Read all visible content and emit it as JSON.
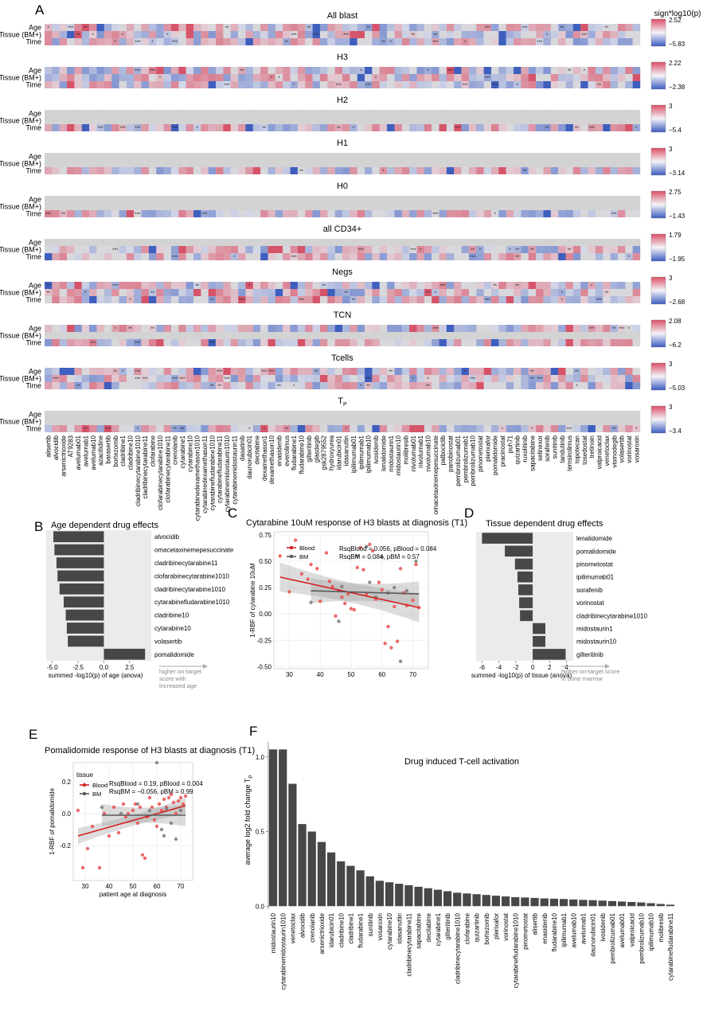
{
  "panel_letters": {
    "A": "A",
    "B": "B",
    "C": "C",
    "D": "D",
    "E": "E",
    "F": "F"
  },
  "heatmap_legend_title": "sign*log10(p)",
  "row_labels": [
    "Age",
    "Tissue (BM+)",
    "Time"
  ],
  "heatmap_panels": [
    {
      "title": "All blast",
      "max": "2.52",
      "min": "−5.83"
    },
    {
      "title": "H3",
      "max": "2.22",
      "min": "−2.38"
    },
    {
      "title": "H2",
      "max": "3",
      "min": "−5.4"
    },
    {
      "title": "H1",
      "max": "3",
      "min": "−3.14"
    },
    {
      "title": "H0",
      "max": "2.75",
      "min": "−1.43"
    },
    {
      "title": "all CD34+",
      "max": "1.79",
      "min": "−1.95"
    },
    {
      "title": "Negs",
      "max": "3",
      "min": "−2.68"
    },
    {
      "title": "TCN",
      "max": "2.08",
      "min": "−6.2"
    },
    {
      "title": "Tcells",
      "max": "3",
      "min": "−5.03"
    },
    {
      "title": "T",
      "title_sub": "P",
      "max": "3",
      "min": "−3.4"
    }
  ],
  "drugs": [
    "alisertib",
    "alvocidib",
    "arsenictrioxide",
    "AT9283",
    "avelumab01",
    "avelumab1",
    "avelumab10",
    "azacitidine",
    "barasertib",
    "bortezomib",
    "cladribine1",
    "cladribine10",
    "cladribinecytarabine1010",
    "cladribinecytarabine11",
    "clofarabine",
    "clofarabinecytarabine1010",
    "clofarabinecytarabine11",
    "crenolanib",
    "cytarabine1",
    "cytarabine10",
    "cytarabinedexamethason1010",
    "cytarabinedexamethason11",
    "cytarabinefludarabine1010",
    "cytarabinefludarabine11",
    "cytarabinemidostaurin1010",
    "cytarabinemidostaurin11",
    "dasatinib",
    "daunorubicin01",
    "decitabine",
    "dexamethason1",
    "dexamethason10",
    "enasidenib",
    "everolimus",
    "fludarabine1",
    "fludarabine10",
    "gilteritinib",
    "glasdegib",
    "gsk2879552",
    "hydroxyurea",
    "idarubicin01",
    "idasanutlin",
    "ipilimumab01",
    "ipilimumab1",
    "ipilimumab10",
    "ivosidenib",
    "lenalidomide",
    "midostaurin1",
    "midostaurin10",
    "molibresib",
    "nivolumab01",
    "nivolumab1",
    "nivolumab10",
    "omacetaxinemepesuccinate",
    "palbociclib",
    "panobinostat",
    "pembrolizumab01",
    "pembrolizumab1",
    "pembrolizumab10",
    "pinometostat",
    "plerixafor",
    "pomalidomide",
    "pracinostat",
    "puh71",
    "quizartinib",
    "ruxolitinib",
    "sapacitabine",
    "selinexor",
    "sorafenib",
    "sunitinib",
    "tandutinib",
    "temsirolimus",
    "topotecan",
    "tosedostat",
    "tretinoin",
    "valproicacid",
    "venetoclax",
    "vismodegib",
    "volasertib",
    "vorinostat",
    "vosaroxin"
  ],
  "colors": {
    "pos": "#d6546a",
    "neg": "#3f5fbf",
    "na": "#d3d3d3",
    "bar": "#474747",
    "blood": "#e8514f",
    "bm": "#7a7a7a",
    "fit_blood": "#d42020",
    "fit_bm": "#5a5a5a",
    "band": "#cfcfcf"
  },
  "panel_B": {
    "title": "Age dependent drug effects",
    "xlabel": "summed -log10(p) of age (anova)",
    "note": [
      "higher on-target",
      "score with",
      "increased age"
    ]
  },
  "panel_C": {
    "title": "Cytarabine 10uM response of H3 blasts at diagnosis (T1)",
    "ylabel": "1-RBF of cytarabine 10uM",
    "legend_blood": "Blood",
    "legend_bm": "BM",
    "stats": [
      "RsqBlood = 0.056, pBlood = 0.084",
      "RsqBM = 0.084, pBM = 0.57"
    ]
  },
  "panel_D": {
    "title": "Tissue dependent drug effects",
    "xlabel": "summed -log10(p) of tissue (anova)",
    "note": [
      "higher on-target score",
      "in bone marrow"
    ]
  },
  "panel_E": {
    "title": "Pomalidomide response of H3 blasts at diagnosis (T1)",
    "ylabel": "1-RBF of pomalidomide",
    "xlabel": "patient age at diagnosis",
    "legend_title": "tissue",
    "legend_blood": "Blood",
    "legend_bm": "BM",
    "stats": [
      "RsqBlood = 0.19, pBlood = 0.004",
      "RsqBM = −0.056, pBM = 0.99"
    ]
  },
  "panel_F": {
    "title": "Drug induced T-cell activation",
    "ylabel": "average log2 fold change T",
    "ylabel_sub": "P"
  },
  "chart_data": [
    {
      "type": "heatmap",
      "panel": "A",
      "rows": [
        "Age",
        "Tissue (BM+)",
        "Time"
      ],
      "columns_key": "drugs",
      "colorbar": "blue-white-red, sign*log10(p)",
      "panels": [
        "All blast",
        "H3",
        "H2",
        "H1",
        "H0",
        "all CD34+",
        "Negs",
        "TCN",
        "Tcells",
        "T_P"
      ]
    },
    {
      "type": "bar",
      "panel": "B",
      "orientation": "horizontal",
      "categories": [
        "alvocidib",
        "omacetaxinemepesuccinate",
        "cladribinecytarabine11",
        "clofarabinecytarabine1010",
        "cladribinecytarabine1010",
        "cytarabinefludarabine1010",
        "cladribine10",
        "cytarabine10",
        "volasertib",
        "pomalidomide"
      ],
      "values": [
        -4.9,
        -4.8,
        -4.6,
        -4.5,
        -4.3,
        -3.9,
        -3.7,
        -3.6,
        -3.5,
        4.0
      ],
      "xlim": [
        -5.6,
        4.6
      ],
      "xticks": [
        "-5.0",
        "-2.5",
        "0.0",
        "2.5"
      ]
    },
    {
      "type": "scatter",
      "panel": "C",
      "xlim": [
        25,
        75
      ],
      "ylim": [
        -0.52,
        0.78
      ],
      "xticks": [
        "30",
        "40",
        "50",
        "60",
        "70"
      ],
      "yticks": [
        "0.75",
        "0.50",
        "0.25",
        "0.00",
        "-0.25",
        "-0.50"
      ],
      "series": [
        {
          "name": "Blood",
          "points": [
            [
              27,
              0.55
            ],
            [
              30,
              0.21
            ],
            [
              32,
              0.7
            ],
            [
              34,
              0.38
            ],
            [
              36,
              0.33
            ],
            [
              37,
              0.47
            ],
            [
              39,
              0.43
            ],
            [
              40,
              0.12
            ],
            [
              42,
              0.58
            ],
            [
              43,
              0.31
            ],
            [
              44,
              0.26
            ],
            [
              45,
              -0.02
            ],
            [
              46,
              0.22
            ],
            [
              47,
              0.16
            ],
            [
              48,
              0.1
            ],
            [
              49,
              0.19
            ],
            [
              50,
              0.05
            ],
            [
              51,
              0.04
            ],
            [
              52,
              0.44
            ],
            [
              53,
              0.63
            ],
            [
              54,
              0.42
            ],
            [
              55,
              0.19
            ],
            [
              56,
              0.66
            ],
            [
              57,
              0.6
            ],
            [
              58,
              0.14
            ],
            [
              59,
              0.3
            ],
            [
              60,
              0.23
            ],
            [
              61,
              -0.28
            ],
            [
              62,
              -0.12
            ],
            [
              63,
              -0.32
            ],
            [
              64,
              0.07
            ],
            [
              65,
              -0.26
            ],
            [
              66,
              0.43
            ],
            [
              67,
              0.2
            ],
            [
              68,
              0.08
            ],
            [
              70,
              0.13
            ],
            [
              71,
              0.47
            ],
            [
              72,
              0.06
            ]
          ],
          "fit": [
            [
              27,
              0.35
            ],
            [
              72,
              0.06
            ]
          ]
        },
        {
          "name": "BM",
          "points": [
            [
              37,
              0.11
            ],
            [
              46,
              -0.07
            ],
            [
              47,
              0.26
            ],
            [
              52,
              0.55
            ],
            [
              55,
              0.64
            ],
            [
              56,
              0.3
            ],
            [
              58,
              0.16
            ],
            [
              60,
              0.54
            ],
            [
              62,
              0.2
            ],
            [
              64,
              0.25
            ],
            [
              66,
              -0.45
            ],
            [
              68,
              0.22
            ],
            [
              71,
              0.5
            ]
          ],
          "fit": [
            [
              37,
              0.22
            ],
            [
              72,
              0.19
            ]
          ]
        }
      ]
    },
    {
      "type": "bar",
      "panel": "D",
      "orientation": "horizontal",
      "categories": [
        "lenalidomide",
        "pomalidomide",
        "pinometostat",
        "ipilimumab01",
        "sorafenib",
        "vorinostat",
        "cladribinecytarabine1010",
        "midostaurin1",
        "midostaurin10",
        "gilteritinib"
      ],
      "values": [
        -6.0,
        -3.3,
        -2.1,
        -1.8,
        -1.7,
        -1.6,
        -1.5,
        1.5,
        1.5,
        3.9
      ],
      "xlim": [
        -6.7,
        4.8
      ],
      "xticks": [
        "-6",
        "-4",
        "-2",
        "0",
        "2",
        "4"
      ]
    },
    {
      "type": "scatter",
      "panel": "E",
      "xlabel": "patient age at diagnosis",
      "xlim": [
        25,
        75
      ],
      "ylim": [
        -0.42,
        0.32
      ],
      "xticks": [
        "30",
        "40",
        "50",
        "60",
        "70"
      ],
      "yticks": [
        "0.2",
        "0.0",
        "-0.2"
      ],
      "series": [
        {
          "name": "Blood",
          "points": [
            [
              27,
              0.02
            ],
            [
              29,
              -0.34
            ],
            [
              31,
              -0.22
            ],
            [
              33,
              -0.08
            ],
            [
              36,
              -0.34
            ],
            [
              38,
              0.0
            ],
            [
              40,
              -0.14
            ],
            [
              42,
              0.04
            ],
            [
              44,
              -0.12
            ],
            [
              46,
              0.06
            ],
            [
              47,
              -0.02
            ],
            [
              48,
              0.0
            ],
            [
              50,
              0.02
            ],
            [
              51,
              0.06
            ],
            [
              52,
              -0.06
            ],
            [
              53,
              0.04
            ],
            [
              54,
              -0.26
            ],
            [
              55,
              -0.28
            ],
            [
              56,
              -0.02
            ],
            [
              57,
              0.1
            ],
            [
              58,
              0.04
            ],
            [
              59,
              -0.04
            ],
            [
              60,
              -0.08
            ],
            [
              61,
              0.06
            ],
            [
              62,
              0.02
            ],
            [
              63,
              0.09
            ],
            [
              64,
              0.04
            ],
            [
              65,
              0.1
            ],
            [
              66,
              0.12
            ],
            [
              67,
              0.07
            ],
            [
              68,
              0.0
            ],
            [
              69,
              0.08
            ],
            [
              70,
              0.1
            ],
            [
              71,
              0.06
            ],
            [
              72,
              0.11
            ]
          ],
          "fit": [
            [
              27,
              -0.14
            ],
            [
              72,
              0.05
            ]
          ]
        },
        {
          "name": "BM",
          "points": [
            [
              37,
              0.04
            ],
            [
              45,
              0.0
            ],
            [
              52,
              0.06
            ],
            [
              57,
              0.02
            ],
            [
              60,
              0.32
            ],
            [
              62,
              -0.1
            ],
            [
              63,
              -0.14
            ],
            [
              64,
              0.03
            ],
            [
              66,
              -0.06
            ],
            [
              68,
              -0.16
            ],
            [
              70,
              0.02
            ]
          ],
          "fit": [
            [
              37,
              -0.01
            ],
            [
              72,
              -0.01
            ]
          ]
        }
      ]
    },
    {
      "type": "bar",
      "panel": "F",
      "ylim": [
        -0.02,
        1.1
      ],
      "yticks": [
        "1.0",
        "0.5",
        "0.0"
      ],
      "categories": [
        "midostaurin10",
        "cytarabinemidostaurin1010",
        "venetoclax",
        "alvocidib",
        "crenolanib",
        "arsenictrioxide",
        "idarubicin01",
        "cladribine10",
        "cladribine1",
        "fludarabine1",
        "sunitinib",
        "vosaroxin",
        "cytarabine10",
        "idasanutlin",
        "cladribinecytarabine11",
        "sapacitabine",
        "decitabine",
        "cytarabine1",
        "gilteritinib",
        "cladribinecytarabine1010",
        "clofarabine",
        "quizartinib",
        "bortezomib",
        "plerixafor",
        "vorinostat",
        "cytarabinefludarabine1010",
        "pinometostat",
        "alisertib",
        "enasidenib",
        "fludarabine10",
        "ipilimumab1",
        "avelumab10",
        "avelumab1",
        "daunorubicin01",
        "ivosidenib",
        "pembrolizumab01",
        "avelumab01",
        "valproicacid",
        "pembrolizumab10",
        "ipilimumab10",
        "molibresib",
        "cytarabinefludarabine11"
      ],
      "values": [
        1.05,
        1.05,
        0.82,
        0.55,
        0.5,
        0.43,
        0.36,
        0.3,
        0.27,
        0.24,
        0.2,
        0.17,
        0.16,
        0.15,
        0.14,
        0.13,
        0.12,
        0.11,
        0.1,
        0.09,
        0.085,
        0.08,
        0.075,
        0.07,
        0.065,
        0.06,
        0.058,
        0.055,
        0.052,
        0.05,
        0.048,
        0.045,
        0.042,
        0.04,
        0.037,
        0.034,
        0.031,
        0.028,
        0.025,
        0.02,
        0.015,
        0.01
      ]
    }
  ]
}
